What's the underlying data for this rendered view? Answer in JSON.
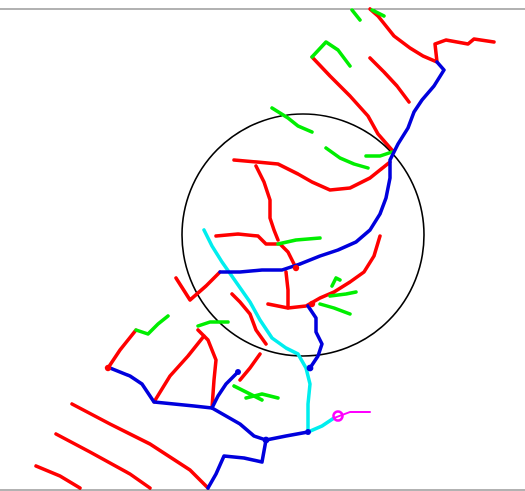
{
  "colors": {
    "background": "#ffffff",
    "frame_line": "#666666",
    "circle": "#000000",
    "red_branch": "#ff0000",
    "green_branch": "#00ee00",
    "blue_trunk": "#0000dd",
    "cyan_branch": "#00eeee",
    "magenta_branch": "#ff00ff"
  },
  "legend": []
}
